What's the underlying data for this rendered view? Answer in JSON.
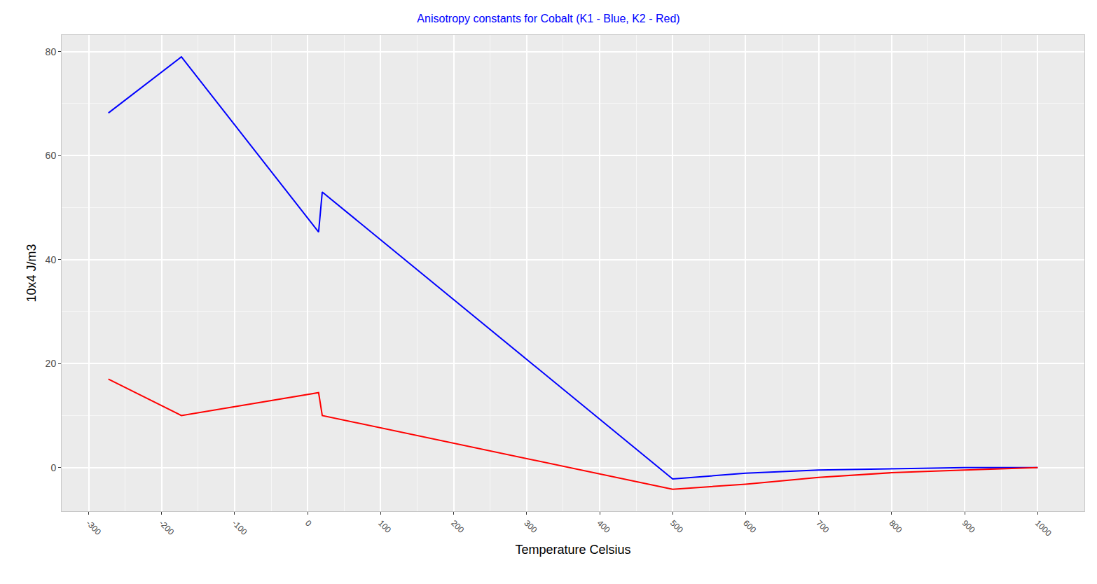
{
  "chart_data": {
    "type": "line",
    "title": "Anisotropy constants for Cobalt (K1 - Blue, K2 - Red)",
    "x_label": "Temperature Celsius",
    "y_label": "10x4 J/m3",
    "x": [
      -273,
      -173,
      15,
      20,
      500,
      600,
      700,
      800,
      900,
      1000
    ],
    "series": [
      {
        "name": "K1",
        "color": "#0000ff",
        "values": [
          68.2,
          79,
          45.3,
          53,
          -2.2,
          -1.1,
          -0.5,
          -0.2,
          0,
          0
        ]
      },
      {
        "name": "K2",
        "color": "#ff0000",
        "values": [
          17,
          10,
          14.4,
          10,
          -4.2,
          -3.2,
          -1.9,
          -1,
          -0.5,
          0
        ]
      }
    ],
    "xlim": [
      -337,
      1064
    ],
    "xticks": [
      -300,
      -200,
      -100,
      0,
      100,
      200,
      300,
      400,
      500,
      600,
      700,
      800,
      900,
      1000
    ],
    "ylim": [
      -8.4,
      83.2
    ],
    "yticks": [
      0,
      20,
      40,
      60,
      80
    ],
    "grid": true
  }
}
